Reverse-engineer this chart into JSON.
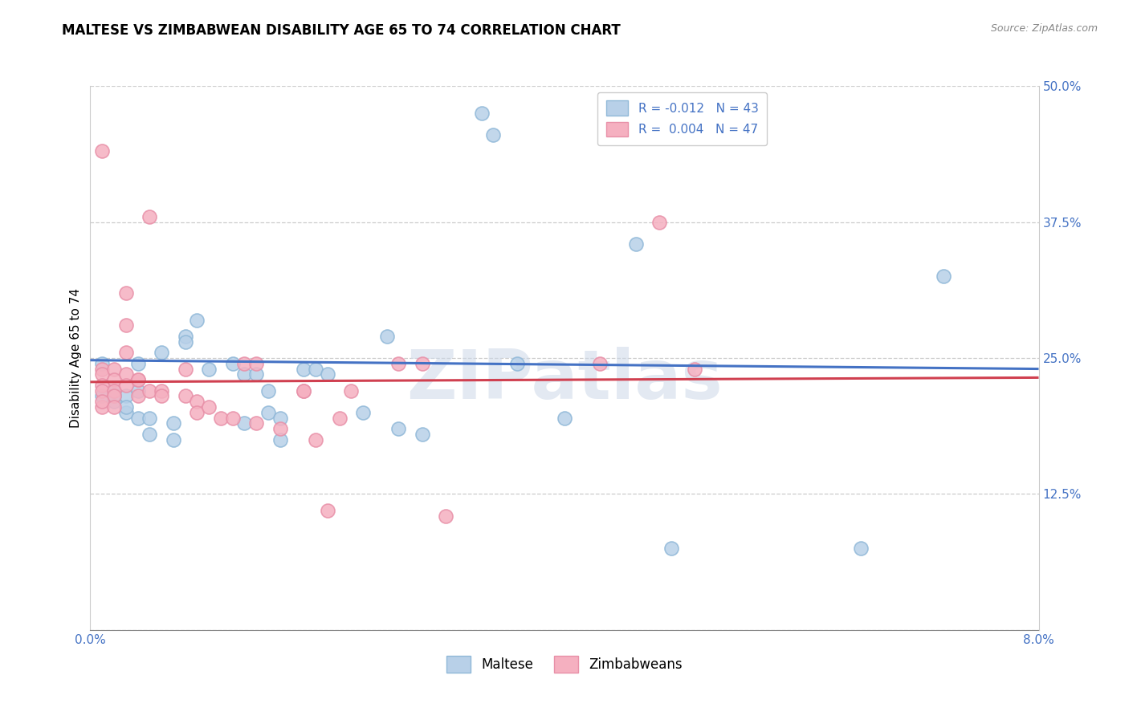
{
  "title": "MALTESE VS ZIMBABWEAN DISABILITY AGE 65 TO 74 CORRELATION CHART",
  "source": "Source: ZipAtlas.com",
  "ylabel": "Disability Age 65 to 74",
  "xlim": [
    0.0,
    0.08
  ],
  "ylim": [
    0.0,
    0.5
  ],
  "xticks": [
    0.0,
    0.01,
    0.02,
    0.03,
    0.04,
    0.05,
    0.06,
    0.07,
    0.08
  ],
  "xticklabels": [
    "0.0%",
    "",
    "",
    "",
    "",
    "",
    "",
    "",
    "8.0%"
  ],
  "yticks": [
    0.0,
    0.125,
    0.25,
    0.375,
    0.5
  ],
  "yticklabels_right": [
    "",
    "12.5%",
    "25.0%",
    "37.5%",
    "50.0%"
  ],
  "legend_r_labels": [
    "R = -0.012   N = 43",
    "R =  0.004   N = 47"
  ],
  "legend_bottom_labels": [
    "Maltese",
    "Zimbabweans"
  ],
  "blue_face_color": "#b8d0e8",
  "blue_edge_color": "#90b8d8",
  "pink_face_color": "#f5b0c0",
  "pink_edge_color": "#e890a8",
  "blue_line_color": "#4472c4",
  "pink_line_color": "#d04050",
  "watermark_text": "ZIPatlas",
  "maltese_x": [
    0.033,
    0.034,
    0.001,
    0.001,
    0.002,
    0.002,
    0.003,
    0.003,
    0.004,
    0.004,
    0.005,
    0.005,
    0.007,
    0.008,
    0.008,
    0.009,
    0.012,
    0.013,
    0.013,
    0.014,
    0.015,
    0.015,
    0.016,
    0.016,
    0.018,
    0.019,
    0.023,
    0.025,
    0.026,
    0.028,
    0.036,
    0.04,
    0.046,
    0.049,
    0.065,
    0.072,
    0.002,
    0.003,
    0.004,
    0.006,
    0.007,
    0.01,
    0.02
  ],
  "maltese_y": [
    0.475,
    0.455,
    0.245,
    0.215,
    0.22,
    0.21,
    0.215,
    0.2,
    0.245,
    0.195,
    0.195,
    0.18,
    0.19,
    0.27,
    0.265,
    0.285,
    0.245,
    0.235,
    0.19,
    0.235,
    0.22,
    0.2,
    0.195,
    0.175,
    0.24,
    0.24,
    0.2,
    0.27,
    0.185,
    0.18,
    0.245,
    0.195,
    0.355,
    0.075,
    0.075,
    0.325,
    0.215,
    0.205,
    0.22,
    0.255,
    0.175,
    0.24,
    0.235
  ],
  "zimbabwean_x": [
    0.001,
    0.001,
    0.001,
    0.001,
    0.001,
    0.001,
    0.002,
    0.002,
    0.002,
    0.002,
    0.003,
    0.003,
    0.003,
    0.003,
    0.003,
    0.004,
    0.004,
    0.004,
    0.005,
    0.005,
    0.006,
    0.006,
    0.008,
    0.008,
    0.009,
    0.009,
    0.01,
    0.011,
    0.012,
    0.013,
    0.014,
    0.014,
    0.016,
    0.018,
    0.018,
    0.019,
    0.02,
    0.021,
    0.022,
    0.026,
    0.028,
    0.03,
    0.043,
    0.048,
    0.051,
    0.001,
    0.002
  ],
  "zimbabwean_y": [
    0.44,
    0.24,
    0.235,
    0.225,
    0.22,
    0.205,
    0.24,
    0.23,
    0.22,
    0.215,
    0.31,
    0.28,
    0.255,
    0.235,
    0.225,
    0.23,
    0.23,
    0.215,
    0.38,
    0.22,
    0.22,
    0.215,
    0.24,
    0.215,
    0.21,
    0.2,
    0.205,
    0.195,
    0.195,
    0.245,
    0.245,
    0.19,
    0.185,
    0.22,
    0.22,
    0.175,
    0.11,
    0.195,
    0.22,
    0.245,
    0.245,
    0.105,
    0.245,
    0.375,
    0.24,
    0.21,
    0.205
  ],
  "blue_trend_x": [
    0.0,
    0.08
  ],
  "blue_trend_y": [
    0.248,
    0.24
  ],
  "pink_trend_x": [
    0.0,
    0.08
  ],
  "pink_trend_y": [
    0.228,
    0.232
  ],
  "title_fontsize": 12,
  "source_fontsize": 9,
  "tick_fontsize": 11,
  "legend_fontsize": 11,
  "ylabel_fontsize": 11,
  "marker_size": 150,
  "marker_lw": 1.2
}
